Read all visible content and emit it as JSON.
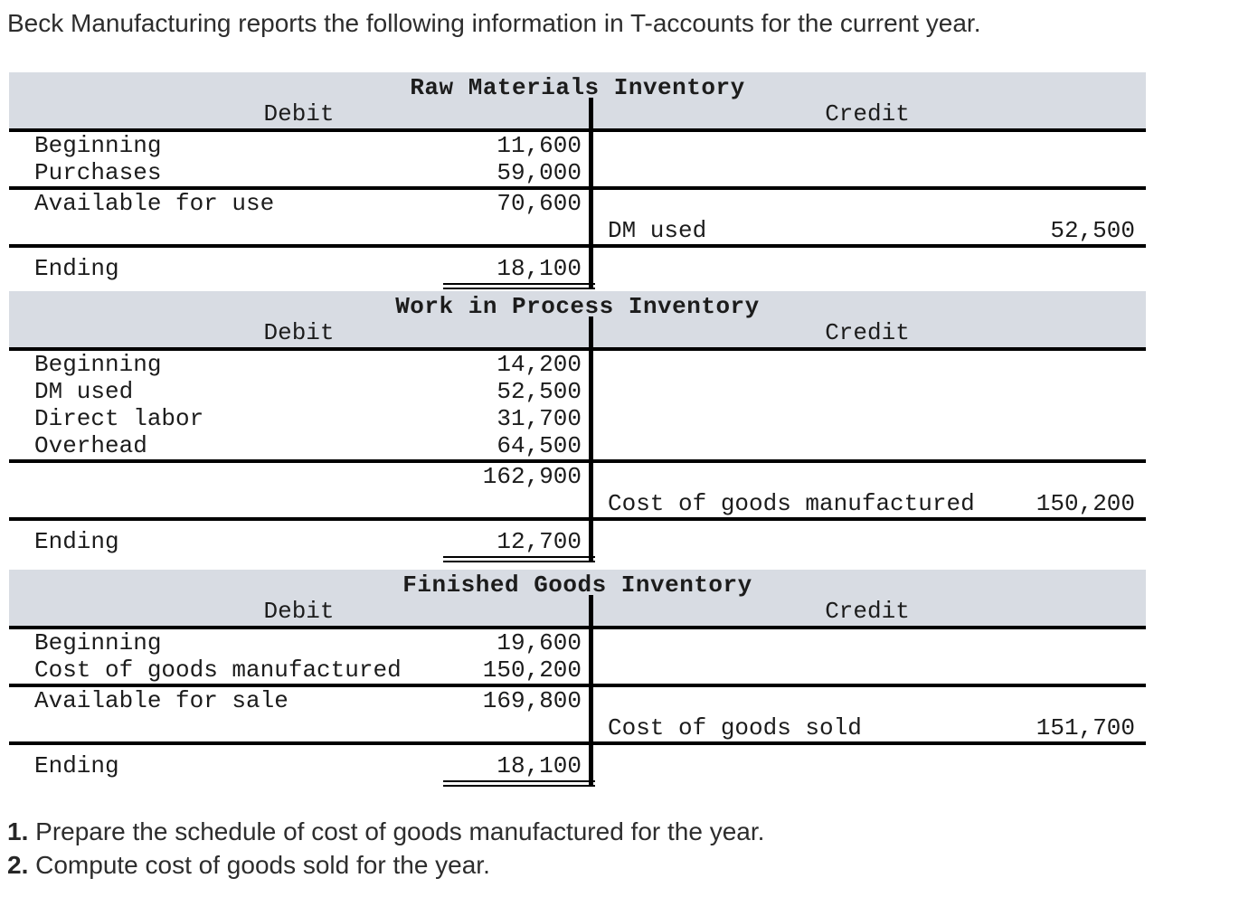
{
  "intro": "Beck Manufacturing reports the following information in T-accounts for the current year.",
  "colors": {
    "header_bg": "#d8dce3",
    "rule": "#000000",
    "text": "#1c1c1c"
  },
  "accounts": [
    {
      "title": "Raw Materials Inventory",
      "debit_header": "Debit",
      "credit_header": "Credit",
      "rows": [
        {
          "side": "debit",
          "label": "Beginning",
          "amount": "11,600"
        },
        {
          "side": "debit",
          "label": "Purchases",
          "amount": "59,000"
        },
        {
          "side": "debit",
          "label": "Available for use",
          "amount": "70,600"
        },
        {
          "side": "credit",
          "label": "DM used",
          "amount": "52,500"
        },
        {
          "side": "debit",
          "label": "Ending",
          "amount": "18,100"
        }
      ]
    },
    {
      "title": "Work in Process Inventory",
      "debit_header": "Debit",
      "credit_header": "Credit",
      "rows": [
        {
          "side": "debit",
          "label": "Beginning",
          "amount": "14,200"
        },
        {
          "side": "debit",
          "label": "DM used",
          "amount": "52,500"
        },
        {
          "side": "debit",
          "label": "Direct labor",
          "amount": "31,700"
        },
        {
          "side": "debit",
          "label": "Overhead",
          "amount": "64,500"
        },
        {
          "side": "debit",
          "label": "",
          "amount": "162,900"
        },
        {
          "side": "credit",
          "label": "Cost of goods manufactured",
          "amount": "150,200"
        },
        {
          "side": "debit",
          "label": "Ending",
          "amount": "12,700"
        }
      ]
    },
    {
      "title": "Finished Goods Inventory",
      "debit_header": "Debit",
      "credit_header": "Credit",
      "rows": [
        {
          "side": "debit",
          "label": "Beginning",
          "amount": "19,600"
        },
        {
          "side": "debit",
          "label": "Cost of goods manufactured",
          "amount": "150,200"
        },
        {
          "side": "debit",
          "label": "Available for sale",
          "amount": "169,800"
        },
        {
          "side": "credit",
          "label": "Cost of goods sold",
          "amount": "151,700"
        },
        {
          "side": "debit",
          "label": "Ending",
          "amount": "18,100"
        }
      ]
    }
  ],
  "tasks": [
    {
      "num": "1.",
      "text": " Prepare the schedule of cost of goods manufactured for the year."
    },
    {
      "num": "2.",
      "text": " Compute cost of goods sold for the year."
    }
  ]
}
